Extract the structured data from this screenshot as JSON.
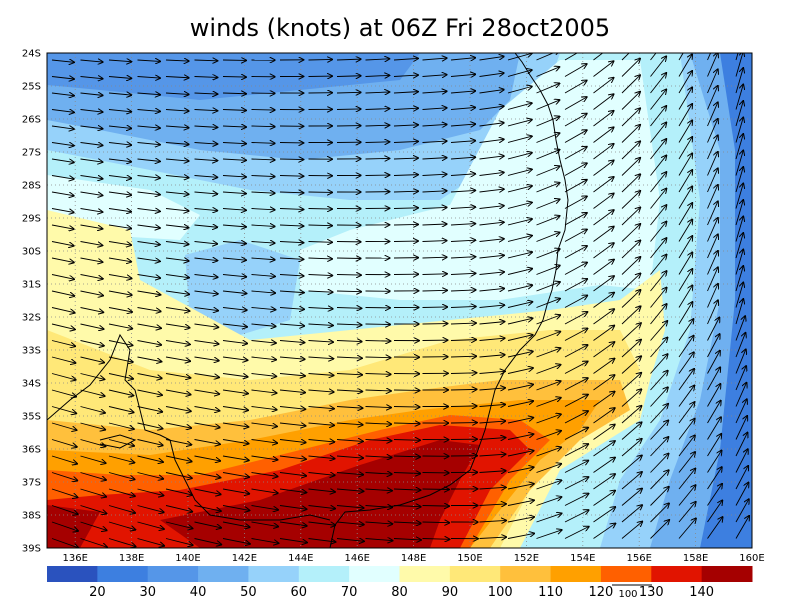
{
  "title": "winds (knots) at 06Z Fri 28oct2005",
  "lat_labels": [
    "24S",
    "25S",
    "26S",
    "27S",
    "28S",
    "29S",
    "30S",
    "31S",
    "32S",
    "33S",
    "34S",
    "35S",
    "36S",
    "37S",
    "38S",
    "39S"
  ],
  "lon_labels": [
    "136E",
    "138E",
    "140E",
    "142E",
    "144E",
    "146E",
    "148E",
    "150E",
    "152E",
    "154E",
    "156E",
    "158E",
    "160E"
  ],
  "colorbar": {
    "labels": [
      "20",
      "30",
      "40",
      "50",
      "60",
      "70",
      "80",
      "90",
      "100",
      "110",
      "120",
      "130",
      "140"
    ],
    "colors": [
      "#2a52be",
      "#3d7fe0",
      "#5596e8",
      "#6fb0f0",
      "#96d2fa",
      "#b4f0fa",
      "#e1ffff",
      "#fffaaa",
      "#ffe878",
      "#ffc03c",
      "#ffa000",
      "#ff6000",
      "#e11400",
      "#a50000"
    ]
  },
  "reference_vector_label": "100"
}
